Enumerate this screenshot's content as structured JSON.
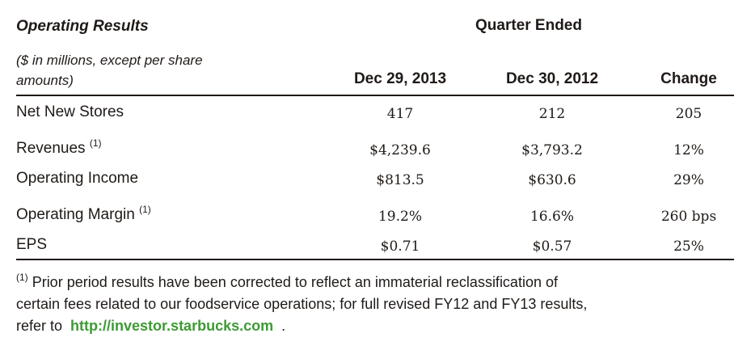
{
  "header": {
    "title": "Operating Results",
    "subtitle": "($ in millions, except per share amounts)",
    "period": "Quarter Ended"
  },
  "columns": [
    "Dec 29, 2013",
    "Dec 30, 2012",
    "Change"
  ],
  "rows": [
    {
      "label": "Net New Stores",
      "note": "",
      "values": [
        "417",
        "212",
        "205"
      ]
    },
    {
      "label": "Revenues",
      "note": "(1)",
      "values": [
        "$4,239.6",
        "$3,793.2",
        "12%"
      ]
    },
    {
      "label": "Operating Income",
      "note": "",
      "values": [
        "$813.5",
        "$630.6",
        "29%"
      ]
    },
    {
      "label": "Operating Margin",
      "note": "(1)",
      "values": [
        "19.2%",
        "16.6%",
        "260 bps"
      ]
    },
    {
      "label": "EPS",
      "note": "",
      "values": [
        "$0.71",
        "$0.57",
        "25%"
      ]
    }
  ],
  "footnote": {
    "marker": "(1)",
    "line1": "Prior period results have been corrected to reflect an immaterial reclassification of",
    "line2": "certain fees related to our foodservice operations; for full revised FY12 and FY13 results,",
    "line3_prefix": "refer to",
    "link": "http://investor.starbucks.com",
    "line3_suffix": "."
  },
  "colors": {
    "text": "#1f1a17",
    "link": "#3d9a34"
  }
}
